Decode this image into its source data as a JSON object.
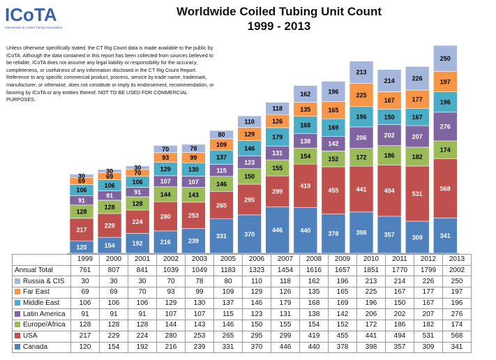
{
  "logo": {
    "text": "ICoTA",
    "tagline": "Intervention & Coiled Tubing Association"
  },
  "title": "Worldwide Coiled Tubing Unit Count",
  "subtitle": "1999 - 2013",
  "disclaimer": "Unless otherwise specifically stated, the CT Rig Count data is made available to the public by ICoTA.  Although the data contained in this report has been collected from sources believed to be reliable, ICoTA does not assume any legal liability or responsibility for the accuracy, completeness, or usefulness of any information disclosed in the CT Rig Count Report. Reference to any specific commercial product, process, service by trade name, trademark, manufacturer, or otherwise, does not constitute or imply its endorsement, recommendation, or favoring by ICoTA or any entities thereof.  NOT TO BE USED FOR COMMERCIAL PURPOSES.",
  "chart_data": {
    "type": "bar",
    "stacked": true,
    "title": "Worldwide Coiled Tubing Unit Count",
    "subtitle": "1999 - 2013",
    "categories": [
      "1999",
      "2000",
      "2001",
      "2002",
      "2003",
      "2005",
      "2006",
      "2007",
      "2008",
      "2009",
      "2010",
      "2011",
      "2012",
      "2013"
    ],
    "series": [
      {
        "name": "Canada",
        "color": "#4F81BD",
        "label_color": "#ffffff",
        "values": [
          120,
          154,
          192,
          216,
          239,
          331,
          370,
          446,
          440,
          378,
          398,
          357,
          309,
          341
        ]
      },
      {
        "name": "USA",
        "color": "#C0504D",
        "label_color": "#ffffff",
        "values": [
          217,
          229,
          224,
          280,
          253,
          265,
          295,
          299,
          419,
          455,
          441,
          494,
          531,
          568
        ]
      },
      {
        "name": "Europe/Africa",
        "color": "#9BBB59",
        "label_color": "#000000",
        "values": [
          128,
          128,
          128,
          144,
          143,
          146,
          150,
          155,
          154,
          152,
          172,
          186,
          182,
          174
        ]
      },
      {
        "name": "Latin America",
        "color": "#8064A2",
        "label_color": "#ffffff",
        "values": [
          91,
          91,
          91,
          107,
          107,
          115,
          123,
          131,
          138,
          142,
          206,
          202,
          207,
          276
        ]
      },
      {
        "name": "Middle East",
        "color": "#4BACC6",
        "label_color": "#000000",
        "values": [
          106,
          106,
          106,
          129,
          130,
          137,
          146,
          179,
          168,
          169,
          196,
          150,
          167,
          196
        ]
      },
      {
        "name": "Far East",
        "color": "#F79646",
        "label_color": "#000000",
        "values": [
          69,
          69,
          70,
          93,
          99,
          109,
          129,
          126,
          135,
          165,
          225,
          167,
          177,
          197
        ]
      },
      {
        "name": "Russia & CIS",
        "color": "#A5B6DC",
        "label_color": "#000000",
        "values": [
          30,
          30,
          30,
          70,
          78,
          80,
          110,
          118,
          162,
          196,
          213,
          214,
          226,
          250
        ]
      }
    ],
    "totals_label": "Annual Total",
    "totals": [
      761,
      807,
      841,
      1039,
      1049,
      1183,
      1323,
      1454,
      1616,
      1657,
      1851,
      1770,
      1799,
      2002
    ],
    "legend": "data-table"
  }
}
